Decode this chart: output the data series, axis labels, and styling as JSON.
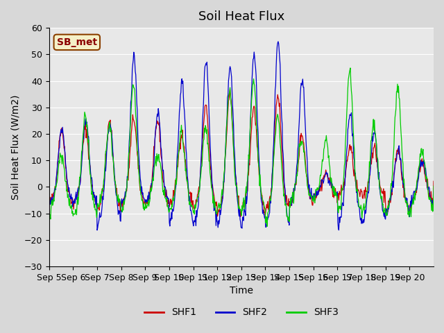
{
  "title": "Soil Heat Flux",
  "ylabel": "Soil Heat Flux (W/m2)",
  "xlabel": "Time",
  "ylim": [
    -30,
    60
  ],
  "yticks": [
    -30,
    -20,
    -10,
    0,
    10,
    20,
    30,
    40,
    50,
    60
  ],
  "xtick_labels": [
    "Sep 5",
    "Sep 6",
    "Sep 7",
    "Sep 8",
    "Sep 9",
    "Sep 10",
    "Sep 11",
    "Sep 12",
    "Sep 13",
    "Sep 14",
    "Sep 15",
    "Sep 16",
    "Sep 17",
    "Sep 18",
    "Sep 19",
    "Sep 20"
  ],
  "line_colors": [
    "#cc0000",
    "#0000cc",
    "#00cc00"
  ],
  "line_labels": [
    "SHF1",
    "SHF2",
    "SHF3"
  ],
  "station_label": "SB_met",
  "station_label_color": "#8b0000",
  "station_box_color": "#f5f0c8",
  "station_box_edge": "#8b4000",
  "fig_bg_color": "#d8d8d8",
  "plot_bg_color": "#e8e8e8",
  "title_fontsize": 13,
  "axis_fontsize": 10,
  "tick_fontsize": 9,
  "legend_fontsize": 10,
  "n_days": 16,
  "day_amps_shf1": [
    22,
    22,
    24,
    26,
    25,
    20,
    30,
    35,
    30,
    35,
    20,
    5,
    15,
    15,
    14,
    10
  ],
  "day_amps_shf2": [
    22,
    25,
    23,
    50,
    28,
    40,
    47,
    45,
    51,
    55,
    40,
    5,
    28,
    20,
    14,
    10
  ],
  "day_amps_shf3": [
    12,
    27,
    23,
    38,
    12,
    21,
    22,
    36,
    40,
    26,
    18,
    18,
    44,
    24,
    38,
    14
  ],
  "night_vals_shf1": [
    -9,
    -9,
    -12,
    -9,
    -9,
    -9,
    -11,
    -14,
    -13,
    -13,
    -8,
    -5,
    -5,
    -5,
    -14,
    -10
  ],
  "night_vals_shf2": [
    -9,
    -9,
    -21,
    -9,
    -9,
    -20,
    -20,
    -20,
    -20,
    -21,
    -8,
    -5,
    -20,
    -20,
    -14,
    -10
  ],
  "night_vals_shf3": [
    -14,
    -16,
    -11,
    -13,
    -12,
    -12,
    -14,
    -13,
    -12,
    -19,
    -8,
    -5,
    -13,
    -15,
    -15,
    -13
  ]
}
